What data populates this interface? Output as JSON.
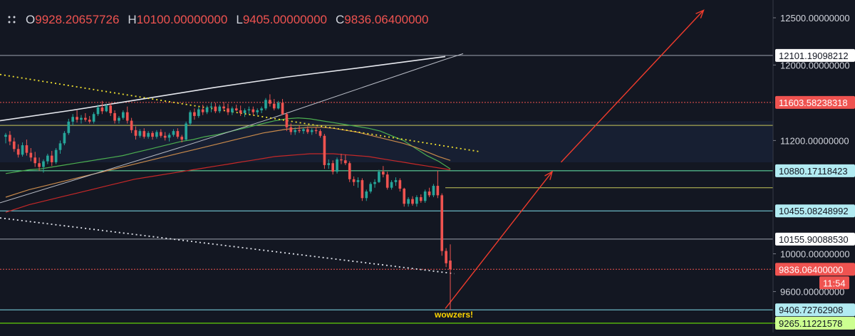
{
  "ohlc": {
    "o_label": "O",
    "o_value": "9928.20657726",
    "h_label": "H",
    "h_value": "10100.00000000",
    "l_label": "L",
    "l_value": "9405.00000000",
    "c_label": "C",
    "c_value": "9836.06400000",
    "menu_icon": "dots-menu-icon"
  },
  "colors": {
    "background": "#131722",
    "up": "#26a69a",
    "down": "#ef5350",
    "channel_white": "#e0e3eb",
    "trend_yellow": "#f0e130",
    "support_cyan": "#80deea",
    "support_green": "#4caf50",
    "arrow_red": "#ef3b2c",
    "annotation_yellow": "#ffd600"
  },
  "chart_data": {
    "type": "candlestick",
    "y_scale": "linear",
    "grid": false,
    "axis_ticks": [
      {
        "value": 12500,
        "label": "12500.00000000"
      },
      {
        "value": 12000,
        "label": "12000.00000000"
      },
      {
        "value": 11200,
        "label": "11200.00000000"
      },
      {
        "value": 10000,
        "label": "10000.00000000"
      },
      {
        "value": 9600,
        "label": "9600.00000000"
      }
    ],
    "price_tags": [
      {
        "value": 12101.19098212,
        "label": "12101.19098212",
        "bg": "#ffffff",
        "fg": "#131722",
        "line": "#9ea3ae",
        "line_end": 1085
      },
      {
        "value": 11603.58238318,
        "label": "11603.58238318",
        "bg": "#ef5350",
        "fg": "#ffffff",
        "line": "#ef5350",
        "line_end": 1085,
        "dotted": true
      },
      {
        "value": 10880.17118423,
        "label": "10880.17118423",
        "bg": "#b2ebf2",
        "fg": "#131722",
        "line": "#69f0ae",
        "line_end": 1085
      },
      {
        "value": 10455.08248992,
        "label": "10455.08248992",
        "bg": "#b2ebf2",
        "fg": "#131722",
        "line": "#80deea",
        "line_end": 1085
      },
      {
        "value": 10155.9008853,
        "label": "10155.90088530",
        "bg": "#ffffff",
        "fg": "#131722",
        "line": "#9ea3ae",
        "line_end": 1085
      },
      {
        "value": 9836.064,
        "label": "9836.06400000",
        "bg": "#ef5350",
        "fg": "#ffffff",
        "line": "#ef5350",
        "line_end": 1085,
        "dotted": true
      },
      {
        "value": 9406.72762908,
        "label": "9406.72762908",
        "bg": "#b2ebf2",
        "fg": "#131722",
        "line": "#80deea",
        "line_end": 1085
      },
      {
        "value": 9265.11221578,
        "label": "9265.11221578",
        "bg": "#ccff90",
        "fg": "#131722",
        "line": "#76ff03",
        "line_end": 1200
      }
    ],
    "countdown_label": "11:54",
    "annotation": "wowzers!",
    "candles": [
      {
        "o": 11240,
        "h": 11280,
        "l": 11170,
        "c": 11260
      },
      {
        "o": 11260,
        "h": 11300,
        "l": 11150,
        "c": 11190
      },
      {
        "o": 11190,
        "h": 11230,
        "l": 11080,
        "c": 11110
      },
      {
        "o": 11110,
        "h": 11160,
        "l": 11020,
        "c": 11050
      },
      {
        "o": 11050,
        "h": 11180,
        "l": 11030,
        "c": 11150
      },
      {
        "o": 11150,
        "h": 11210,
        "l": 11040,
        "c": 11070
      },
      {
        "o": 11070,
        "h": 11120,
        "l": 10980,
        "c": 11020
      },
      {
        "o": 11020,
        "h": 11080,
        "l": 10920,
        "c": 10960
      },
      {
        "o": 10960,
        "h": 11020,
        "l": 10880,
        "c": 10920
      },
      {
        "o": 10920,
        "h": 11000,
        "l": 10860,
        "c": 10980
      },
      {
        "o": 10980,
        "h": 11060,
        "l": 10950,
        "c": 11040
      },
      {
        "o": 11040,
        "h": 11090,
        "l": 10930,
        "c": 10970
      },
      {
        "o": 10970,
        "h": 11120,
        "l": 10950,
        "c": 11100
      },
      {
        "o": 11100,
        "h": 11200,
        "l": 11060,
        "c": 11170
      },
      {
        "o": 11170,
        "h": 11300,
        "l": 11150,
        "c": 11280
      },
      {
        "o": 11280,
        "h": 11430,
        "l": 11260,
        "c": 11400
      },
      {
        "o": 11400,
        "h": 11480,
        "l": 11360,
        "c": 11450
      },
      {
        "o": 11450,
        "h": 11520,
        "l": 11390,
        "c": 11420
      },
      {
        "o": 11420,
        "h": 11470,
        "l": 11380,
        "c": 11440
      },
      {
        "o": 11440,
        "h": 11490,
        "l": 11400,
        "c": 11420
      },
      {
        "o": 11420,
        "h": 11460,
        "l": 11380,
        "c": 11400
      },
      {
        "o": 11400,
        "h": 11500,
        "l": 11380,
        "c": 11480
      },
      {
        "o": 11480,
        "h": 11580,
        "l": 11460,
        "c": 11550
      },
      {
        "o": 11550,
        "h": 11620,
        "l": 11480,
        "c": 11510
      },
      {
        "o": 11510,
        "h": 11590,
        "l": 11500,
        "c": 11570
      },
      {
        "o": 11570,
        "h": 11600,
        "l": 11460,
        "c": 11490
      },
      {
        "o": 11490,
        "h": 11520,
        "l": 11380,
        "c": 11410
      },
      {
        "o": 11410,
        "h": 11460,
        "l": 11380,
        "c": 11440
      },
      {
        "o": 11440,
        "h": 11520,
        "l": 11420,
        "c": 11500
      },
      {
        "o": 11500,
        "h": 11560,
        "l": 11380,
        "c": 11410
      },
      {
        "o": 11410,
        "h": 11440,
        "l": 11280,
        "c": 11310
      },
      {
        "o": 11310,
        "h": 11350,
        "l": 11210,
        "c": 11250
      },
      {
        "o": 11250,
        "h": 11320,
        "l": 11230,
        "c": 11300
      },
      {
        "o": 11300,
        "h": 11330,
        "l": 11220,
        "c": 11240
      },
      {
        "o": 11240,
        "h": 11300,
        "l": 11220,
        "c": 11280
      },
      {
        "o": 11280,
        "h": 11300,
        "l": 11210,
        "c": 11240
      },
      {
        "o": 11240,
        "h": 11310,
        "l": 11220,
        "c": 11290
      },
      {
        "o": 11290,
        "h": 11320,
        "l": 11230,
        "c": 11250
      },
      {
        "o": 11250,
        "h": 11290,
        "l": 11200,
        "c": 11230
      },
      {
        "o": 11230,
        "h": 11280,
        "l": 11190,
        "c": 11260
      },
      {
        "o": 11260,
        "h": 11320,
        "l": 11240,
        "c": 11300
      },
      {
        "o": 11300,
        "h": 11330,
        "l": 11220,
        "c": 11240
      },
      {
        "o": 11240,
        "h": 11260,
        "l": 11180,
        "c": 11210
      },
      {
        "o": 11210,
        "h": 11400,
        "l": 11200,
        "c": 11380
      },
      {
        "o": 11380,
        "h": 11520,
        "l": 11360,
        "c": 11500
      },
      {
        "o": 11500,
        "h": 11540,
        "l": 11420,
        "c": 11460
      },
      {
        "o": 11460,
        "h": 11550,
        "l": 11440,
        "c": 11530
      },
      {
        "o": 11530,
        "h": 11580,
        "l": 11470,
        "c": 11500
      },
      {
        "o": 11500,
        "h": 11570,
        "l": 11480,
        "c": 11550
      },
      {
        "o": 11550,
        "h": 11600,
        "l": 11500,
        "c": 11560
      },
      {
        "o": 11560,
        "h": 11600,
        "l": 11490,
        "c": 11510
      },
      {
        "o": 11510,
        "h": 11580,
        "l": 11490,
        "c": 11560
      },
      {
        "o": 11560,
        "h": 11610,
        "l": 11510,
        "c": 11540
      },
      {
        "o": 11540,
        "h": 11590,
        "l": 11470,
        "c": 11500
      },
      {
        "o": 11500,
        "h": 11560,
        "l": 11470,
        "c": 11540
      },
      {
        "o": 11540,
        "h": 11580,
        "l": 11510,
        "c": 11520
      },
      {
        "o": 11520,
        "h": 11570,
        "l": 11460,
        "c": 11490
      },
      {
        "o": 11490,
        "h": 11540,
        "l": 11450,
        "c": 11520
      },
      {
        "o": 11520,
        "h": 11560,
        "l": 11480,
        "c": 11530
      },
      {
        "o": 11530,
        "h": 11560,
        "l": 11470,
        "c": 11500
      },
      {
        "o": 11500,
        "h": 11540,
        "l": 11470,
        "c": 11520
      },
      {
        "o": 11520,
        "h": 11560,
        "l": 11490,
        "c": 11540
      },
      {
        "o": 11540,
        "h": 11650,
        "l": 11520,
        "c": 11630
      },
      {
        "o": 11630,
        "h": 11690,
        "l": 11560,
        "c": 11590
      },
      {
        "o": 11590,
        "h": 11640,
        "l": 11520,
        "c": 11540
      },
      {
        "o": 11540,
        "h": 11620,
        "l": 11530,
        "c": 11600
      },
      {
        "o": 11600,
        "h": 11640,
        "l": 11470,
        "c": 11480
      },
      {
        "o": 11480,
        "h": 11500,
        "l": 11300,
        "c": 11340
      },
      {
        "o": 11340,
        "h": 11380,
        "l": 11260,
        "c": 11290
      },
      {
        "o": 11290,
        "h": 11340,
        "l": 11260,
        "c": 11310
      },
      {
        "o": 11310,
        "h": 11360,
        "l": 11280,
        "c": 11300
      },
      {
        "o": 11300,
        "h": 11340,
        "l": 11270,
        "c": 11320
      },
      {
        "o": 11320,
        "h": 11350,
        "l": 11270,
        "c": 11290
      },
      {
        "o": 11290,
        "h": 11330,
        "l": 11260,
        "c": 11310
      },
      {
        "o": 11310,
        "h": 11340,
        "l": 11270,
        "c": 11300
      },
      {
        "o": 11300,
        "h": 11320,
        "l": 11230,
        "c": 11250
      },
      {
        "o": 11250,
        "h": 11270,
        "l": 10900,
        "c": 10940
      },
      {
        "o": 10940,
        "h": 11000,
        "l": 10900,
        "c": 10960
      },
      {
        "o": 10960,
        "h": 10990,
        "l": 10840,
        "c": 10870
      },
      {
        "o": 10870,
        "h": 11020,
        "l": 10850,
        "c": 11000
      },
      {
        "o": 11000,
        "h": 11060,
        "l": 10950,
        "c": 10990
      },
      {
        "o": 10990,
        "h": 11050,
        "l": 10940,
        "c": 10960
      },
      {
        "o": 10960,
        "h": 10980,
        "l": 10760,
        "c": 10790
      },
      {
        "o": 10790,
        "h": 10820,
        "l": 10720,
        "c": 10760
      },
      {
        "o": 10760,
        "h": 10810,
        "l": 10700,
        "c": 10780
      },
      {
        "o": 10780,
        "h": 10800,
        "l": 10560,
        "c": 10590
      },
      {
        "o": 10590,
        "h": 10680,
        "l": 10560,
        "c": 10660
      },
      {
        "o": 10660,
        "h": 10760,
        "l": 10640,
        "c": 10740
      },
      {
        "o": 10740,
        "h": 10790,
        "l": 10700,
        "c": 10760
      },
      {
        "o": 10760,
        "h": 10890,
        "l": 10750,
        "c": 10870
      },
      {
        "o": 10870,
        "h": 10930,
        "l": 10810,
        "c": 10840
      },
      {
        "o": 10840,
        "h": 10870,
        "l": 10680,
        "c": 10700
      },
      {
        "o": 10700,
        "h": 10780,
        "l": 10680,
        "c": 10760
      },
      {
        "o": 10760,
        "h": 10810,
        "l": 10720,
        "c": 10780
      },
      {
        "o": 10780,
        "h": 10800,
        "l": 10660,
        "c": 10690
      },
      {
        "o": 10690,
        "h": 10700,
        "l": 10500,
        "c": 10530
      },
      {
        "o": 10530,
        "h": 10600,
        "l": 10500,
        "c": 10580
      },
      {
        "o": 10580,
        "h": 10610,
        "l": 10510,
        "c": 10530
      },
      {
        "o": 10530,
        "h": 10620,
        "l": 10500,
        "c": 10600
      },
      {
        "o": 10600,
        "h": 10630,
        "l": 10540,
        "c": 10560
      },
      {
        "o": 10560,
        "h": 10680,
        "l": 10540,
        "c": 10660
      },
      {
        "o": 10660,
        "h": 10700,
        "l": 10600,
        "c": 10620
      },
      {
        "o": 10620,
        "h": 10740,
        "l": 10600,
        "c": 10720
      },
      {
        "o": 10720,
        "h": 10880,
        "l": 10590,
        "c": 10620
      },
      {
        "o": 10620,
        "h": 10640,
        "l": 9980,
        "c": 10030
      },
      {
        "o": 10030,
        "h": 10060,
        "l": 9860,
        "c": 9900
      },
      {
        "o": 9928.20657726,
        "h": 10100,
        "l": 9405,
        "c": 9836.064
      }
    ],
    "moving_averages": [
      {
        "color": "#4caf50",
        "values": [
          10850,
          10870,
          10890,
          10900,
          10920,
          10940,
          10960,
          10980,
          11000,
          11020,
          11040,
          11070,
          11100,
          11130,
          11160,
          11190,
          11210,
          11240,
          11260,
          11290,
          11320,
          11350,
          11380,
          11410,
          11430,
          11440,
          11430,
          11410,
          11390,
          11370,
          11350,
          11330,
          11300,
          11250,
          11200,
          11120,
          11040,
          10980,
          10900
        ]
      },
      {
        "color": "#c98a4b",
        "values": [
          10600,
          10640,
          10680,
          10710,
          10740,
          10770,
          10800,
          10830,
          10860,
          10890,
          10920,
          10950,
          10980,
          11010,
          11040,
          11070,
          11100,
          11130,
          11160,
          11190,
          11220,
          11250,
          11280,
          11300,
          11320,
          11330,
          11340,
          11340,
          11330,
          11310,
          11290,
          11260,
          11230,
          11200,
          11170,
          11130,
          11080,
          11030,
          10990
        ]
      },
      {
        "color": "#c62828",
        "values": [
          10440,
          10480,
          10520,
          10550,
          10580,
          10610,
          10640,
          10670,
          10700,
          10730,
          10760,
          10790,
          10810,
          10830,
          10850,
          10870,
          10890,
          10910,
          10930,
          10950,
          10970,
          10990,
          11010,
          11030,
          11040,
          11050,
          11060,
          11060,
          11060,
          11050,
          11040,
          11030,
          11010,
          10990,
          10970,
          10950,
          10930,
          10910,
          10890
        ]
      }
    ],
    "overlays": {
      "channel_upper": [
        [
          0,
          11410
        ],
        [
          80,
          11520
        ],
        [
          160,
          11640
        ],
        [
          240,
          11760
        ],
        [
          320,
          11870
        ],
        [
          420,
          11990
        ],
        [
          500,
          12090
        ]
      ],
      "channel_upper_2": [
        [
          0,
          10540
        ],
        [
          100,
          10830
        ],
        [
          200,
          11120
        ],
        [
          300,
          11420
        ],
        [
          400,
          11740
        ],
        [
          500,
          12060
        ],
        [
          520,
          12120
        ]
      ],
      "resistance_dotted": [
        [
          0,
          11900
        ],
        [
          540,
          11080
        ]
      ],
      "support_dotted": [
        [
          0,
          10380
        ],
        [
          510,
          9790
        ]
      ],
      "arrow_a": [
        [
          500,
          9420
        ],
        [
          620,
          10870
        ]
      ],
      "arrow_b": [
        [
          630,
          10970
        ],
        [
          790,
          12580
        ]
      ]
    }
  }
}
